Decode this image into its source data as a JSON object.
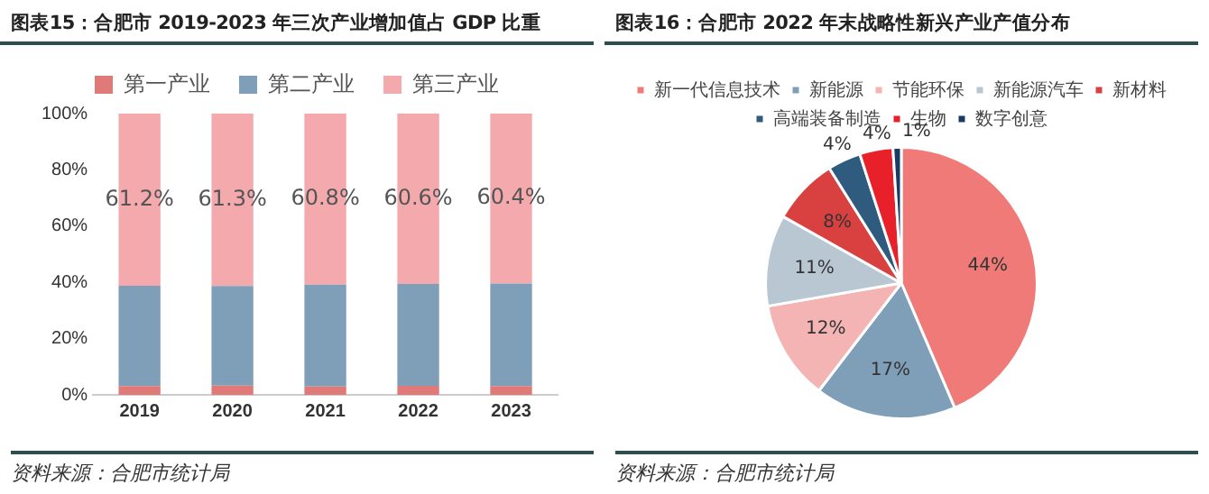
{
  "chart_data": [
    {
      "type": "bar",
      "title": "图表15：合肥市 2019-2023 年三次产业增加值占 GDP 比重",
      "stacked": true,
      "categories": [
        "2019",
        "2020",
        "2021",
        "2022",
        "2023"
      ],
      "series": [
        {
          "name": "第一产业",
          "color": "#e07a78",
          "values": [
            3.1,
            3.3,
            3.0,
            3.2,
            3.1
          ]
        },
        {
          "name": "第二产业",
          "color": "#7f9fb8",
          "values": [
            35.7,
            35.4,
            36.2,
            36.2,
            36.5
          ]
        },
        {
          "name": "第三产业",
          "color": "#f4a9ad",
          "values": [
            61.2,
            61.3,
            60.8,
            60.6,
            60.4
          ],
          "value_labels": [
            "61.2%",
            "61.3%",
            "60.8%",
            "60.6%",
            "60.4%"
          ]
        }
      ],
      "ylim": [
        0,
        100
      ],
      "yticks": [
        {
          "value": 0,
          "label": "0%"
        },
        {
          "value": 20,
          "label": "20%"
        },
        {
          "value": 40,
          "label": "40%"
        },
        {
          "value": 60,
          "label": "60%"
        },
        {
          "value": 80,
          "label": "80%"
        },
        {
          "value": 100,
          "label": "100%"
        }
      ],
      "grid": false,
      "legend": "top",
      "annotations": [
        "资料来源：合肥市统计局"
      ]
    },
    {
      "type": "pie",
      "title": "图表16：合肥市 2022 年末战略性新兴产业产值分布",
      "categories": [
        "新一代信息技术",
        "新能源",
        "节能环保",
        "新能源汽车",
        "新材料",
        "高端装备制造",
        "生物",
        "数字创意"
      ],
      "values": [
        44,
        17,
        12,
        11,
        8,
        4,
        4,
        1
      ],
      "colors": [
        "#f07a78",
        "#7f9fb8",
        "#f4b4b4",
        "#b9c7d3",
        "#d94040",
        "#2e5b7e",
        "#e8202a",
        "#1a3a66"
      ],
      "value_labels": [
        "44%",
        "17%",
        "12%",
        "11%",
        "8%",
        "4%",
        "4%",
        "1%"
      ],
      "legend": "top",
      "annotations": [
        "资料来源：合肥市统计局"
      ]
    }
  ]
}
